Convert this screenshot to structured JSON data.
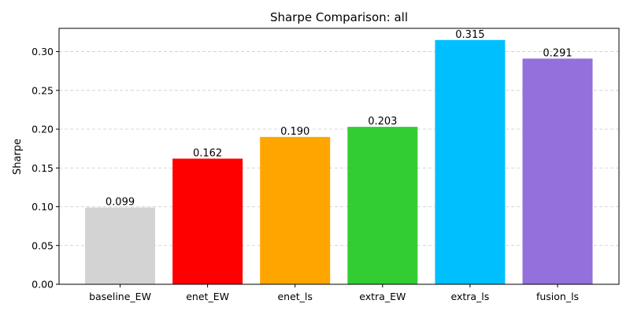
{
  "chart_data": {
    "type": "bar",
    "title": "Sharpe Comparison: all",
    "xlabel": "",
    "ylabel": "Sharpe",
    "categories": [
      "baseline_EW",
      "enet_EW",
      "enet_ls",
      "extra_EW",
      "extra_ls",
      "fusion_ls"
    ],
    "values": [
      0.099,
      0.162,
      0.19,
      0.203,
      0.315,
      0.291
    ],
    "value_labels": [
      "0.099",
      "0.162",
      "0.190",
      "0.203",
      "0.315",
      "0.291"
    ],
    "colors": [
      "#d3d3d3",
      "#ff0000",
      "#ffa500",
      "#32cd32",
      "#00bfff",
      "#9370db"
    ],
    "ylim": [
      0,
      0.33
    ],
    "yticks": [
      0.0,
      0.05,
      0.1,
      0.15,
      0.2,
      0.25,
      0.3
    ],
    "ytick_labels": [
      "0.00",
      "0.05",
      "0.10",
      "0.15",
      "0.20",
      "0.25",
      "0.30"
    ],
    "grid": "y-dashed"
  }
}
